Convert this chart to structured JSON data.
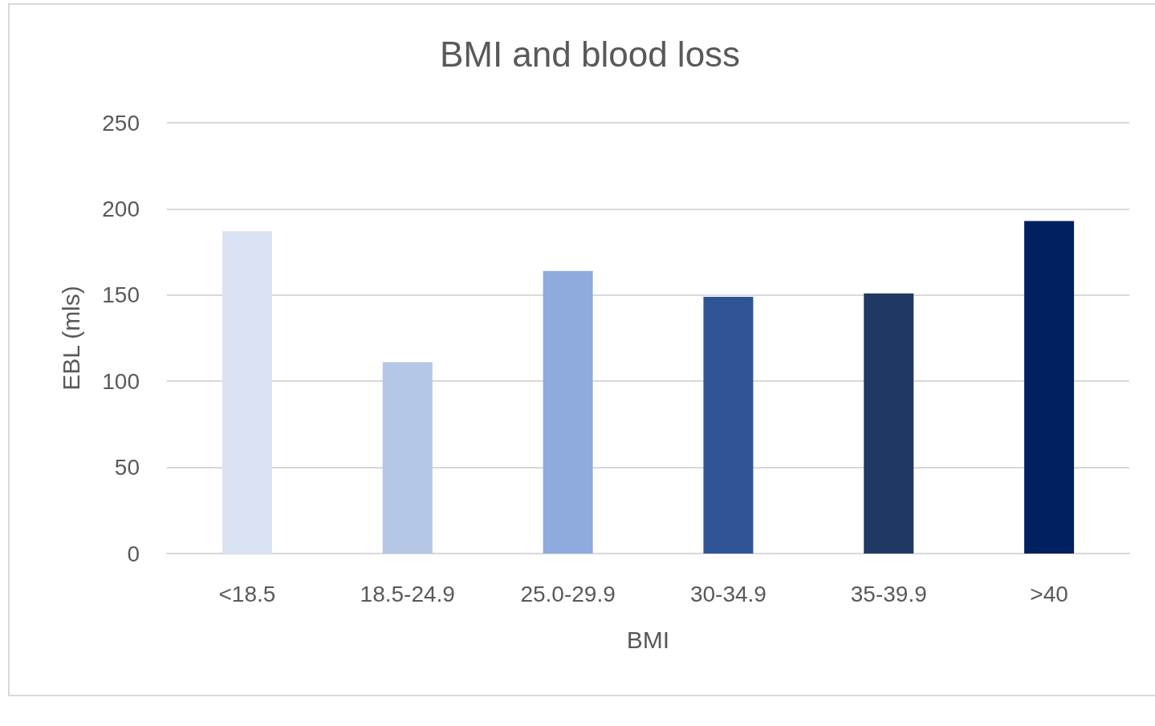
{
  "chart_data": {
    "type": "bar",
    "title": "BMI and blood loss",
    "xlabel": "BMI",
    "ylabel": "EBL (mls)",
    "categories": [
      "<18.5",
      "18.5-24.9",
      "25.0-29.9",
      "30-34.9",
      "35-39.9",
      ">40"
    ],
    "values": [
      187,
      111,
      164,
      149,
      151,
      193
    ],
    "colors": [
      "#dae3f3",
      "#b4c7e7",
      "#8faadc",
      "#2f5597",
      "#203864",
      "#002060"
    ],
    "ylim": [
      0,
      250
    ],
    "yticks": [
      0,
      50,
      100,
      150,
      200,
      250
    ],
    "grid": "y"
  }
}
